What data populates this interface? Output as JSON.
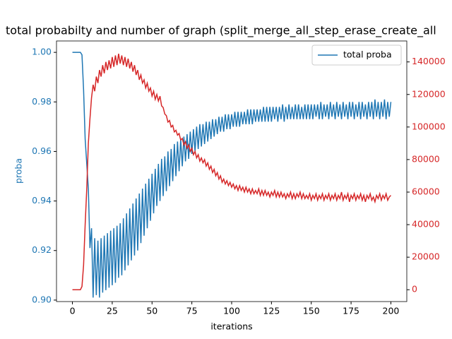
{
  "chart_data": {
    "type": "line",
    "title": "total probabilty and number of graph (split_merge_all_step_erase_create_all",
    "xlabel": "iterations",
    "ylabel": "proba",
    "xlim": [
      -10,
      210
    ],
    "xticks": [
      0,
      25,
      50,
      75,
      100,
      125,
      150,
      175,
      200
    ],
    "ylim": [
      0.8994,
      1.0046
    ],
    "yticks": [
      {
        "value": 0.9,
        "label": "0.90"
      },
      0.92,
      0.94,
      0.96,
      0.98,
      {
        "value": 1.0,
        "label": "1.00"
      }
    ],
    "y2lim": [
      -7280,
      152880
    ],
    "y2ticks": [
      0,
      20000,
      40000,
      60000,
      80000,
      100000,
      120000,
      140000
    ],
    "legend": "upper right",
    "x": [
      0,
      1,
      2,
      3,
      4,
      5,
      6,
      7,
      8,
      9,
      10,
      11,
      12,
      13,
      14,
      15,
      16,
      17,
      18,
      19,
      20,
      21,
      22,
      23,
      24,
      25,
      26,
      27,
      28,
      29,
      30,
      31,
      32,
      33,
      34,
      35,
      36,
      37,
      38,
      39,
      40,
      41,
      42,
      43,
      44,
      45,
      46,
      47,
      48,
      49,
      50,
      51,
      52,
      53,
      54,
      55,
      56,
      57,
      58,
      59,
      60,
      61,
      62,
      63,
      64,
      65,
      66,
      67,
      68,
      69,
      70,
      71,
      72,
      73,
      74,
      75,
      76,
      77,
      78,
      79,
      80,
      81,
      82,
      83,
      84,
      85,
      86,
      87,
      88,
      89,
      90,
      91,
      92,
      93,
      94,
      95,
      96,
      97,
      98,
      99,
      100,
      101,
      102,
      103,
      104,
      105,
      106,
      107,
      108,
      109,
      110,
      111,
      112,
      113,
      114,
      115,
      116,
      117,
      118,
      119,
      120,
      121,
      122,
      123,
      124,
      125,
      126,
      127,
      128,
      129,
      130,
      131,
      132,
      133,
      134,
      135,
      136,
      137,
      138,
      139,
      140,
      141,
      142,
      143,
      144,
      145,
      146,
      147,
      148,
      149,
      150,
      151,
      152,
      153,
      154,
      155,
      156,
      157,
      158,
      159,
      160,
      161,
      162,
      163,
      164,
      165,
      166,
      167,
      168,
      169,
      170,
      171,
      172,
      173,
      174,
      175,
      176,
      177,
      178,
      179,
      180,
      181,
      182,
      183,
      184,
      185,
      186,
      187,
      188,
      189,
      190,
      191,
      192,
      193,
      194,
      195,
      196,
      197,
      198,
      199,
      200
    ],
    "series": [
      {
        "name": "total proba",
        "color": "#1f77b4",
        "values": [
          1.0,
          1.0,
          1.0,
          1.0,
          1.0,
          1.0,
          0.999,
          0.985,
          0.965,
          0.955,
          0.945,
          0.921,
          0.929,
          0.901,
          0.925,
          0.902,
          0.924,
          0.901,
          0.925,
          0.903,
          0.926,
          0.904,
          0.927,
          0.905,
          0.928,
          0.906,
          0.929,
          0.907,
          0.93,
          0.909,
          0.931,
          0.91,
          0.933,
          0.912,
          0.935,
          0.914,
          0.937,
          0.916,
          0.939,
          0.918,
          0.941,
          0.92,
          0.943,
          0.923,
          0.945,
          0.926,
          0.947,
          0.929,
          0.949,
          0.932,
          0.951,
          0.935,
          0.953,
          0.938,
          0.955,
          0.94,
          0.957,
          0.942,
          0.958,
          0.944,
          0.96,
          0.946,
          0.961,
          0.948,
          0.963,
          0.95,
          0.964,
          0.952,
          0.965,
          0.954,
          0.966,
          0.956,
          0.967,
          0.957,
          0.968,
          0.959,
          0.969,
          0.96,
          0.97,
          0.961,
          0.971,
          0.962,
          0.971,
          0.963,
          0.972,
          0.964,
          0.972,
          0.965,
          0.973,
          0.966,
          0.973,
          0.967,
          0.974,
          0.968,
          0.974,
          0.968,
          0.975,
          0.969,
          0.975,
          0.969,
          0.975,
          0.97,
          0.976,
          0.97,
          0.976,
          0.97,
          0.976,
          0.971,
          0.976,
          0.971,
          0.977,
          0.971,
          0.977,
          0.971,
          0.977,
          0.972,
          0.977,
          0.972,
          0.977,
          0.972,
          0.978,
          0.972,
          0.978,
          0.972,
          0.978,
          0.972,
          0.978,
          0.973,
          0.978,
          0.972,
          0.978,
          0.973,
          0.979,
          0.972,
          0.978,
          0.973,
          0.979,
          0.973,
          0.978,
          0.973,
          0.979,
          0.973,
          0.979,
          0.973,
          0.978,
          0.973,
          0.979,
          0.973,
          0.979,
          0.973,
          0.979,
          0.973,
          0.979,
          0.974,
          0.979,
          0.973,
          0.98,
          0.973,
          0.979,
          0.974,
          0.979,
          0.973,
          0.98,
          0.974,
          0.979,
          0.973,
          0.98,
          0.974,
          0.979,
          0.973,
          0.98,
          0.974,
          0.979,
          0.973,
          0.98,
          0.974,
          0.98,
          0.973,
          0.979,
          0.974,
          0.98,
          0.973,
          0.98,
          0.974,
          0.979,
          0.973,
          0.98,
          0.974,
          0.98,
          0.973,
          0.981,
          0.974,
          0.98,
          0.973,
          0.98,
          0.974,
          0.981,
          0.973,
          0.98,
          0.974,
          0.98
        ]
      },
      {
        "color": "#d62728",
        "axis": "y2",
        "values": [
          0,
          0,
          0,
          0,
          0,
          0,
          2000,
          15000,
          40000,
          62000,
          90000,
          105000,
          118000,
          126000,
          122000,
          131000,
          127000,
          135000,
          131000,
          138000,
          133000,
          140000,
          135000,
          141000,
          136000,
          143000,
          137000,
          144000,
          138000,
          145000,
          139000,
          144000,
          138000,
          143000,
          137000,
          142000,
          136000,
          140000,
          134000,
          138000,
          132000,
          135000,
          129000,
          132000,
          127000,
          129000,
          124000,
          127000,
          122000,
          124000,
          119000,
          122000,
          117000,
          120000,
          116000,
          119000,
          113000,
          112000,
          108000,
          107000,
          103000,
          104000,
          100000,
          101000,
          97000,
          98000,
          95000,
          96000,
          92000,
          93000,
          89000,
          91000,
          87000,
          89000,
          85000,
          87000,
          83000,
          85000,
          81000,
          83000,
          79000,
          81000,
          78000,
          80000,
          76000,
          78000,
          74000,
          76000,
          72000,
          74000,
          70000,
          72000,
          68000,
          70000,
          66000,
          68000,
          65000,
          67000,
          64000,
          66000,
          63000,
          65000,
          62000,
          64000,
          61000,
          64000,
          61000,
          63000,
          60000,
          63000,
          60000,
          62000,
          59000,
          62000,
          59000,
          61000,
          59000,
          62000,
          58000,
          61000,
          58000,
          61000,
          58000,
          60000,
          57000,
          60000,
          58000,
          61000,
          57000,
          60000,
          57000,
          60000,
          57000,
          59000,
          56000,
          59000,
          57000,
          60000,
          56000,
          59000,
          56000,
          59000,
          57000,
          60000,
          56000,
          59000,
          56000,
          58000,
          56000,
          59000,
          55000,
          58000,
          56000,
          59000,
          55000,
          58000,
          56000,
          59000,
          55000,
          58000,
          56000,
          59000,
          55000,
          58000,
          56000,
          59000,
          55000,
          58000,
          56000,
          60000,
          55000,
          58000,
          56000,
          59000,
          54000,
          58000,
          56000,
          59000,
          55000,
          58000,
          56000,
          59000,
          55000,
          58000,
          54000,
          58000,
          56000,
          59000,
          55000,
          57000,
          54000,
          58000,
          56000,
          59000,
          55000,
          58000,
          56000,
          59000,
          55000,
          57000,
          58000
        ]
      }
    ]
  }
}
